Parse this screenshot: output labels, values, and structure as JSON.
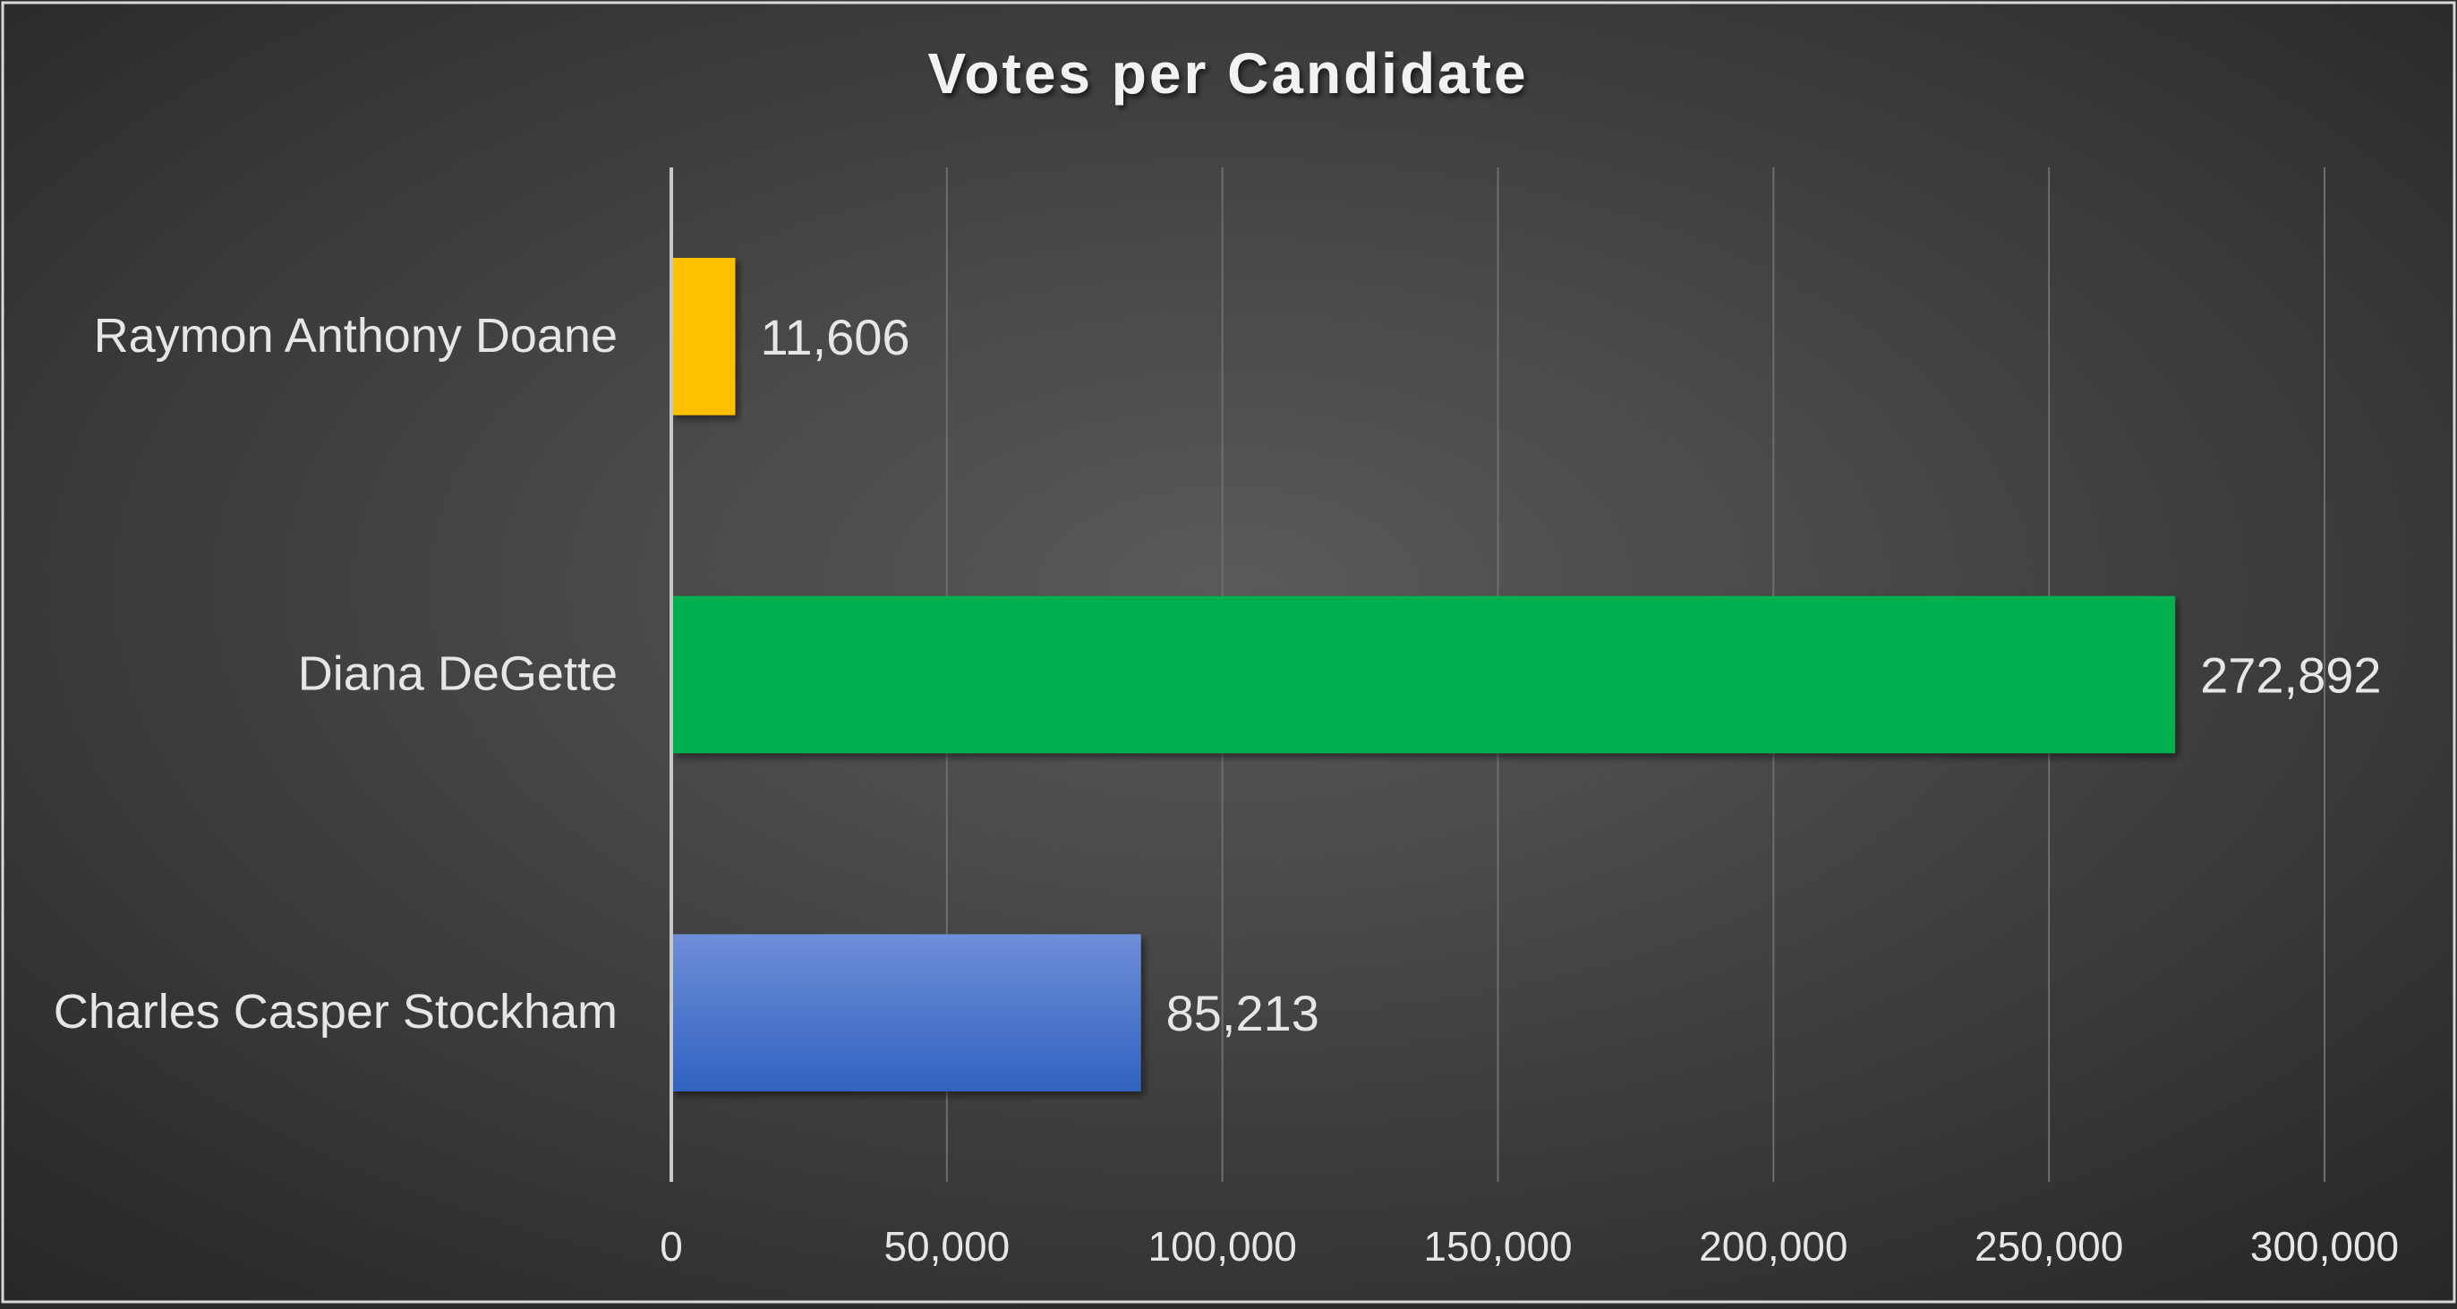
{
  "chart_data": {
    "type": "bar",
    "orientation": "horizontal",
    "title": "Votes per Candidate",
    "xlabel": "",
    "ylabel": "",
    "categories": [
      "Raymon Anthony Doane",
      "Diana DeGette",
      "Charles Casper Stockham"
    ],
    "values": [
      11606,
      272892,
      85213
    ],
    "value_labels": [
      "11,606",
      "272,892",
      "85,213"
    ],
    "bar_colors": [
      "#FFC000",
      "#00B050",
      "#4472C4"
    ],
    "xlim": [
      0,
      300000
    ],
    "xticks": [
      0,
      50000,
      100000,
      150000,
      200000,
      250000,
      300000
    ],
    "xtick_labels": [
      "0",
      "50,000",
      "100,000",
      "150,000",
      "200,000",
      "250,000",
      "300,000"
    ],
    "grid": "vertical",
    "legend": "none"
  },
  "colors": {
    "background_center": "#5a5a5a",
    "background_edge": "#262626",
    "text": "#e6e6e6",
    "gridline": "#6e6e6e",
    "axis": "#c8c8c8"
  }
}
